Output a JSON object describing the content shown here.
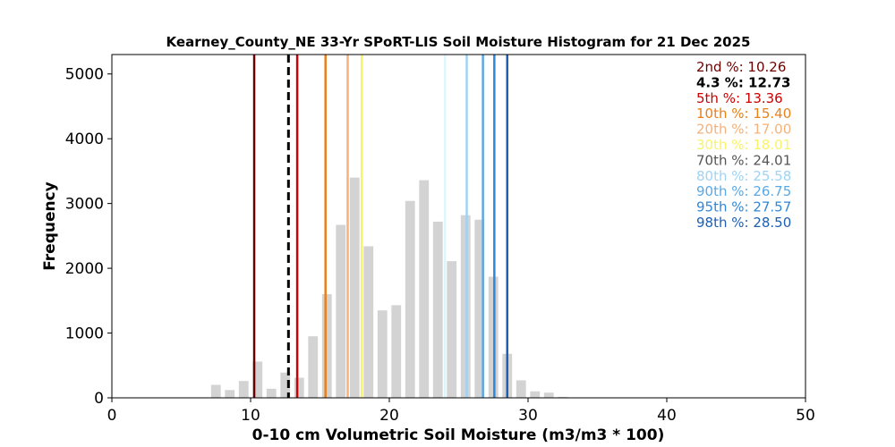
{
  "chart_data": {
    "type": "bar",
    "title": "Kearney_County_NE 33-Yr SPoRT-LIS Soil Moisture Histogram for 21 Dec 2025",
    "xlabel": "0-10 cm Volumetric Soil Moisture (m3/m3 * 100)",
    "ylabel": "Frequency",
    "xlim": [
      0,
      50
    ],
    "ylim": [
      0,
      5300
    ],
    "xticks": [
      0,
      10,
      20,
      30,
      40,
      50
    ],
    "yticks": [
      0,
      1000,
      2000,
      3000,
      4000,
      5000
    ],
    "grid": false,
    "bar_color": "#d3d3d3",
    "bins": [
      {
        "x": 7.5,
        "count": 200
      },
      {
        "x": 8.5,
        "count": 120
      },
      {
        "x": 9.5,
        "count": 260
      },
      {
        "x": 10.5,
        "count": 560
      },
      {
        "x": 11.5,
        "count": 140
      },
      {
        "x": 12.5,
        "count": 390
      },
      {
        "x": 13.5,
        "count": 310
      },
      {
        "x": 14.5,
        "count": 950
      },
      {
        "x": 15.5,
        "count": 1600
      },
      {
        "x": 16.5,
        "count": 2670
      },
      {
        "x": 17.5,
        "count": 3400
      },
      {
        "x": 18.5,
        "count": 2340
      },
      {
        "x": 19.5,
        "count": 1350
      },
      {
        "x": 20.5,
        "count": 1430
      },
      {
        "x": 21.5,
        "count": 3040
      },
      {
        "x": 22.5,
        "count": 3360
      },
      {
        "x": 23.5,
        "count": 2720
      },
      {
        "x": 24.5,
        "count": 2110
      },
      {
        "x": 25.5,
        "count": 2820
      },
      {
        "x": 26.5,
        "count": 2750
      },
      {
        "x": 27.5,
        "count": 1870
      },
      {
        "x": 28.5,
        "count": 680
      },
      {
        "x": 29.5,
        "count": 270
      },
      {
        "x": 30.5,
        "count": 100
      },
      {
        "x": 31.5,
        "count": 80
      },
      {
        "x": 32.5,
        "count": 15
      }
    ],
    "percentiles": [
      {
        "label": "2nd %: 10.26",
        "value": 10.26,
        "color": "#6b0000",
        "dashed": false
      },
      {
        "label": "4.3 %: 12.73",
        "value": 12.73,
        "color": "#000000",
        "dashed": true
      },
      {
        "label": "5th %: 13.36",
        "value": 13.36,
        "color": "#cc0000",
        "dashed": false
      },
      {
        "label": "10th %: 15.40",
        "value": 15.4,
        "color": "#e8811a",
        "dashed": false
      },
      {
        "label": "20th %: 17.00",
        "value": 17.0,
        "color": "#f5b27a",
        "dashed": false
      },
      {
        "label": "30th %: 18.01",
        "value": 18.01,
        "color": "#f7f36b",
        "dashed": false
      },
      {
        "label": "70th %: 24.01",
        "value": 24.01,
        "color": "#dcf7fb",
        "dashed": false
      },
      {
        "label": "80th %: 25.58",
        "value": 25.58,
        "color": "#9fd3f5",
        "dashed": false
      },
      {
        "label": "90th %: 26.75",
        "value": 26.75,
        "color": "#5aa9e6",
        "dashed": false
      },
      {
        "label": "95th %: 27.57",
        "value": 27.57,
        "color": "#3186d6",
        "dashed": false
      },
      {
        "label": "98th %: 28.50",
        "value": 28.5,
        "color": "#1d5fb5",
        "dashed": false
      }
    ],
    "legend_position": "top-right"
  }
}
